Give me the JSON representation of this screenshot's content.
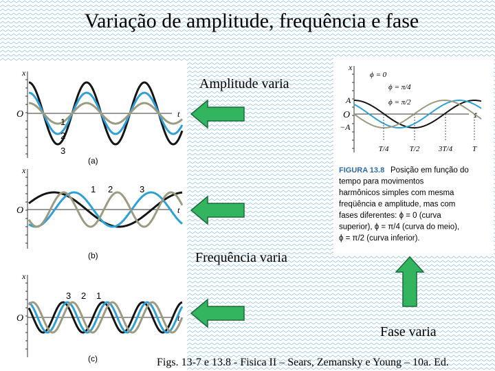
{
  "title": "Variação de amplitude, frequência  e fase",
  "labels": {
    "amplitude": "Amplitude varia",
    "frequency": "Frequência varia",
    "phase": "Fase varia"
  },
  "footer": "Figs. 13-7 e 13.8 - Fisica II – Sears, Zemansky e Young – 10a. Ed.",
  "figure_left": {
    "panels": [
      {
        "axis_y": "x",
        "origin": "O",
        "axis_t": "t",
        "curve_labels": [
          "1",
          "2",
          "3"
        ],
        "caption": "(a)"
      },
      {
        "axis_y": "x",
        "origin": "O",
        "axis_t": "t",
        "curve_labels": [
          "1",
          "2",
          "3"
        ],
        "caption": "(b)"
      },
      {
        "axis_y": "x",
        "origin": "O",
        "axis_t": "t",
        "curve_labels": [
          "3",
          "2",
          "1"
        ],
        "caption": "(c)"
      }
    ]
  },
  "figure_right": {
    "axis_y": "x",
    "origin": "O",
    "axis_t": "t",
    "amp_pos": "A",
    "amp_neg": "−A",
    "phases": [
      "ϕ = 0",
      "ϕ = π/4",
      "ϕ = π/2"
    ],
    "time_ticks": [
      "T/4",
      "T/2",
      "3T/4",
      "T"
    ],
    "caption_label": "FIGURA 13.8",
    "caption_lines": [
      "Posição em função do",
      "tempo para movimentos",
      "harmônicos simples com mesma",
      "freqüência e amplitude, mas com",
      "fases diferentes: ϕ = 0 (curva",
      "superior), ϕ = π/4 (curva do meio),",
      "ϕ = π/2 (curva inferior)."
    ]
  }
}
